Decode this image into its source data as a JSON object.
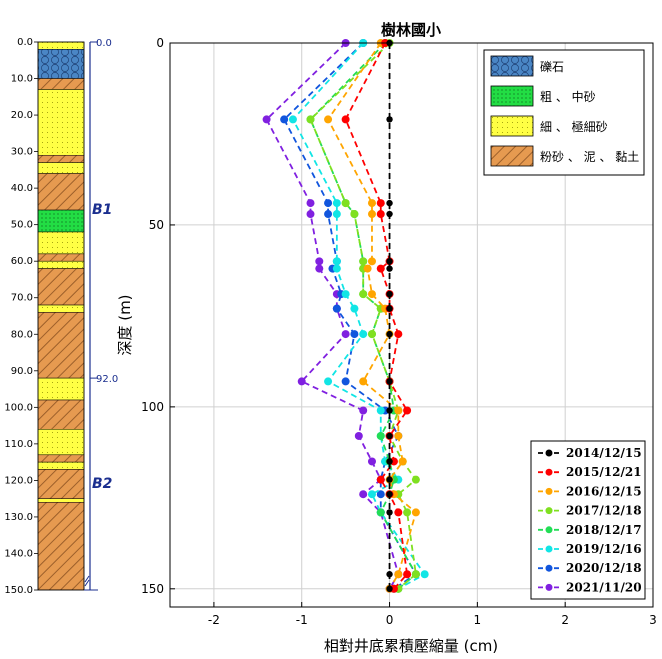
{
  "chart_data": {
    "type": "line",
    "title": "樹林國小",
    "xlabel": "相對井底累積壓縮量 (cm)",
    "ylabel": "深度 (m)",
    "xlim": [
      -2.5,
      3
    ],
    "ylim": [
      0,
      155
    ],
    "xticks": [
      -2,
      -1,
      0,
      1,
      2,
      3
    ],
    "yticks": [
      0,
      50,
      100,
      150
    ],
    "grid": true,
    "depths": [
      0,
      21,
      44,
      47,
      60,
      62,
      69,
      73,
      80,
      93,
      101,
      108,
      115,
      120,
      124,
      129,
      146,
      150
    ],
    "series": [
      {
        "name": "2014/12/15",
        "color": "#000000",
        "values": [
          0,
          0,
          0,
          0,
          0,
          0,
          0,
          0,
          0,
          0,
          0,
          0,
          0,
          0,
          0,
          0,
          0,
          0
        ]
      },
      {
        "name": "2015/12/21",
        "color": "#ff0000",
        "values": [
          -0.05,
          -0.5,
          -0.1,
          -0.1,
          0,
          -0.1,
          0,
          0,
          0.1,
          0,
          0.2,
          0,
          0.05,
          -0.1,
          0,
          0.1,
          0.2,
          0.05
        ]
      },
      {
        "name": "2016/12/15",
        "color": "#ffa500",
        "values": [
          -0.1,
          -0.7,
          -0.2,
          -0.2,
          -0.2,
          -0.25,
          -0.2,
          -0.05,
          0,
          -0.3,
          0.1,
          0.1,
          0.15,
          0,
          0.05,
          0.3,
          0.1,
          0
        ]
      },
      {
        "name": "2017/12/18",
        "color": "#7fe020",
        "values": [
          0,
          -0.9,
          -0.5,
          -0.4,
          -0.3,
          -0.3,
          -0.3,
          -0.1,
          -0.2,
          0,
          0.1,
          0,
          0.15,
          0.3,
          0.1,
          0.2,
          0.3,
          0.1
        ]
      },
      {
        "name": "2018/12/17",
        "color": "#22dd55",
        "values": [
          -0.05,
          -0.9,
          -0.5,
          -0.4,
          -0.3,
          -0.3,
          -0.3,
          -0.1,
          -0.2,
          0,
          0.05,
          -0.1,
          0,
          0.05,
          0,
          -0.1,
          0.3,
          0.1
        ]
      },
      {
        "name": "2019/12/16",
        "color": "#11e5e5",
        "values": [
          -0.3,
          -1.1,
          -0.6,
          -0.6,
          -0.6,
          -0.6,
          -0.5,
          -0.4,
          -0.3,
          -0.7,
          -0.1,
          -0.1,
          -0.05,
          0.1,
          -0.2,
          -0.1,
          0.4,
          0.1
        ]
      },
      {
        "name": "2020/12/18",
        "color": "#1155dd",
        "values": [
          -0.3,
          -1.2,
          -0.7,
          -0.7,
          -0.6,
          -0.65,
          -0.55,
          -0.6,
          -0.4,
          -0.5,
          -0.05,
          0.1,
          -0.05,
          -0.1,
          -0.1,
          -0.1,
          0.3,
          0.05
        ]
      },
      {
        "name": "2021/11/20",
        "color": "#8020e0",
        "values": [
          -0.5,
          -1.4,
          -0.9,
          -0.9,
          -0.8,
          -0.8,
          -0.6,
          -0.6,
          -0.5,
          -1.0,
          -0.3,
          -0.35,
          -0.2,
          -0.1,
          -0.3,
          -0.1,
          0.1,
          0
        ]
      }
    ]
  },
  "soil_legend": [
    {
      "label": "礫石",
      "color": "#4a86c5",
      "pattern": "gravel"
    },
    {
      "label": "粗 、 中砂",
      "color": "#22dd44",
      "pattern": "dots"
    },
    {
      "label": "細 、 極細砂",
      "color": "#ffff44",
      "pattern": "dots"
    },
    {
      "label": "粉砂 、 泥 、 黏土",
      "color": "#e69a50",
      "pattern": "hatch"
    }
  ],
  "borehole": {
    "depth_ticks": [
      "0.0",
      "10.0",
      "20.0",
      "30.0",
      "40.0",
      "50.0",
      "60.0",
      "70.0",
      "80.0",
      "90.0",
      "100.0",
      "110.0",
      "120.0",
      "130.0",
      "140.0",
      "150.0"
    ],
    "blue_labels": [
      "0.0",
      "92.0"
    ],
    "wells": [
      "B1",
      "B2"
    ],
    "layers": [
      {
        "top": 0,
        "bottom": 2,
        "soil": "fine"
      },
      {
        "top": 2,
        "bottom": 10,
        "soil": "gravel"
      },
      {
        "top": 10,
        "bottom": 13,
        "soil": "clay"
      },
      {
        "top": 13,
        "bottom": 31,
        "soil": "fine"
      },
      {
        "top": 31,
        "bottom": 33,
        "soil": "clay"
      },
      {
        "top": 33,
        "bottom": 36,
        "soil": "fine"
      },
      {
        "top": 36,
        "bottom": 46,
        "soil": "clay"
      },
      {
        "top": 46,
        "bottom": 52,
        "soil": "coarse"
      },
      {
        "top": 52,
        "bottom": 58,
        "soil": "fine"
      },
      {
        "top": 58,
        "bottom": 60,
        "soil": "clay"
      },
      {
        "top": 60,
        "bottom": 62,
        "soil": "fine"
      },
      {
        "top": 62,
        "bottom": 72,
        "soil": "clay"
      },
      {
        "top": 72,
        "bottom": 74,
        "soil": "fine"
      },
      {
        "top": 74,
        "bottom": 92,
        "soil": "clay"
      },
      {
        "top": 92,
        "bottom": 98,
        "soil": "fine"
      },
      {
        "top": 98,
        "bottom": 106,
        "soil": "clay"
      },
      {
        "top": 106,
        "bottom": 113,
        "soil": "fine"
      },
      {
        "top": 113,
        "bottom": 115,
        "soil": "clay"
      },
      {
        "top": 115,
        "bottom": 117,
        "soil": "fine"
      },
      {
        "top": 117,
        "bottom": 125,
        "soil": "clay"
      },
      {
        "top": 125,
        "bottom": 126,
        "soil": "fine"
      },
      {
        "top": 126,
        "bottom": 150,
        "soil": "clay"
      }
    ]
  }
}
